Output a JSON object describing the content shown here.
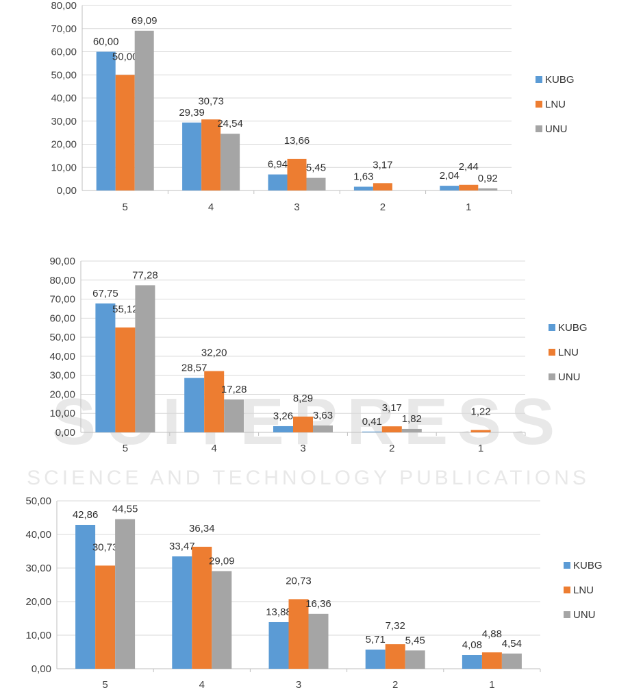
{
  "watermark": {
    "big": "SCITEPRESS",
    "small": "SCIENCE AND TECHNOLOGY PUBLICATIONS"
  },
  "colors": {
    "KUBG": "#5b9bd5",
    "LNU": "#ed7d31",
    "UNU": "#a5a5a5"
  },
  "chart_data": [
    {
      "type": "bar",
      "categories": [
        "5",
        "4",
        "3",
        "2",
        "1"
      ],
      "series": [
        {
          "name": "KUBG",
          "values": [
            60.0,
            29.39,
            6.94,
            1.63,
            2.04
          ],
          "labels": [
            "60,00",
            "29,39",
            "6,94",
            "1,63",
            "2,04"
          ]
        },
        {
          "name": "LNU",
          "values": [
            50.0,
            30.73,
            13.66,
            3.17,
            2.44
          ],
          "labels": [
            "50,00",
            "30,73",
            "13,66",
            "3,17",
            "2,44"
          ]
        },
        {
          "name": "UNU",
          "values": [
            69.09,
            24.54,
            5.45,
            0,
            0.92
          ],
          "labels": [
            "69,09",
            "24,54",
            "5,45",
            "",
            "0,92"
          ]
        }
      ],
      "ylim": [
        0,
        80
      ],
      "yticks": [
        "0,00",
        "10,00",
        "20,00",
        "30,00",
        "40,00",
        "50,00",
        "60,00",
        "70,00",
        "80,00"
      ],
      "grid": true,
      "legend": "right"
    },
    {
      "type": "bar",
      "categories": [
        "5",
        "4",
        "3",
        "2",
        "1"
      ],
      "series": [
        {
          "name": "KUBG",
          "values": [
            67.75,
            28.57,
            3.26,
            0.41,
            0
          ],
          "labels": [
            "67,75",
            "28,57",
            "3,26",
            "0,41",
            ""
          ]
        },
        {
          "name": "LNU",
          "values": [
            55.12,
            32.2,
            8.29,
            3.17,
            1.22
          ],
          "labels": [
            "55,12",
            "32,20",
            "8,29",
            "3,17",
            "1,22"
          ]
        },
        {
          "name": "UNU",
          "values": [
            77.28,
            17.28,
            3.63,
            1.82,
            0
          ],
          "labels": [
            "77,28",
            "17,28",
            "3,63",
            "1,82",
            ""
          ]
        }
      ],
      "ylim": [
        0,
        90
      ],
      "yticks": [
        "0,00",
        "10,00",
        "20,00",
        "30,00",
        "40,00",
        "50,00",
        "60,00",
        "70,00",
        "80,00",
        "90,00"
      ],
      "grid": true,
      "legend": "right"
    },
    {
      "type": "bar",
      "categories": [
        "5",
        "4",
        "3",
        "2",
        "1"
      ],
      "series": [
        {
          "name": "KUBG",
          "values": [
            42.86,
            33.47,
            13.88,
            5.71,
            4.08
          ],
          "labels": [
            "42,86",
            "33,47",
            "13,88",
            "5,71",
            "4,08"
          ]
        },
        {
          "name": "LNU",
          "values": [
            30.73,
            36.34,
            20.73,
            7.32,
            4.88
          ],
          "labels": [
            "30,73",
            "36,34",
            "20,73",
            "7,32",
            "4,88"
          ]
        },
        {
          "name": "UNU",
          "values": [
            44.55,
            29.09,
            16.36,
            5.45,
            4.54
          ],
          "labels": [
            "44,55",
            "29,09",
            "16,36",
            "5,45",
            "4,54"
          ]
        }
      ],
      "ylim": [
        0,
        50
      ],
      "yticks": [
        "0,00",
        "10,00",
        "20,00",
        "30,00",
        "40,00",
        "50,00"
      ],
      "grid": true,
      "legend": "right"
    }
  ]
}
